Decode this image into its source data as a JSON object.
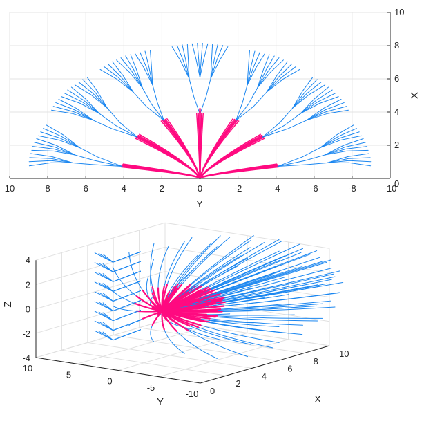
{
  "chart_data": [
    {
      "type": "line",
      "view": "2d-top",
      "xlabel": "Y",
      "ylabel": "X",
      "x_ticks": [
        "10",
        "8",
        "6",
        "4",
        "2",
        "0",
        "-2",
        "-4",
        "-6",
        "-8",
        "-10"
      ],
      "y_ticks": [
        "0",
        "2",
        "4",
        "6",
        "8",
        "10"
      ],
      "xlim": [
        10,
        -10
      ],
      "ylim": [
        0,
        10
      ],
      "x_reversed": true,
      "y_axis_location": "right",
      "grid": true,
      "series_colors": {
        "inner": "#ff0a80",
        "outer": "#1a86f0"
      }
    },
    {
      "type": "line",
      "view": "3d",
      "xlabel": "X",
      "ylabel": "Y",
      "zlabel": "Z",
      "x_ticks": [
        "0",
        "2",
        "4",
        "6",
        "8",
        "10"
      ],
      "y_ticks": [
        "10",
        "5",
        "0",
        "-5",
        "-10"
      ],
      "z_ticks": [
        "4",
        "2",
        "0",
        "-2",
        "-4"
      ],
      "xlim": [
        0,
        10
      ],
      "ylim": [
        -10,
        10
      ],
      "zlim": [
        -4,
        4
      ],
      "grid": true,
      "series_colors": {
        "inner": "#ff0a80",
        "outer": "#1a86f0"
      }
    }
  ]
}
